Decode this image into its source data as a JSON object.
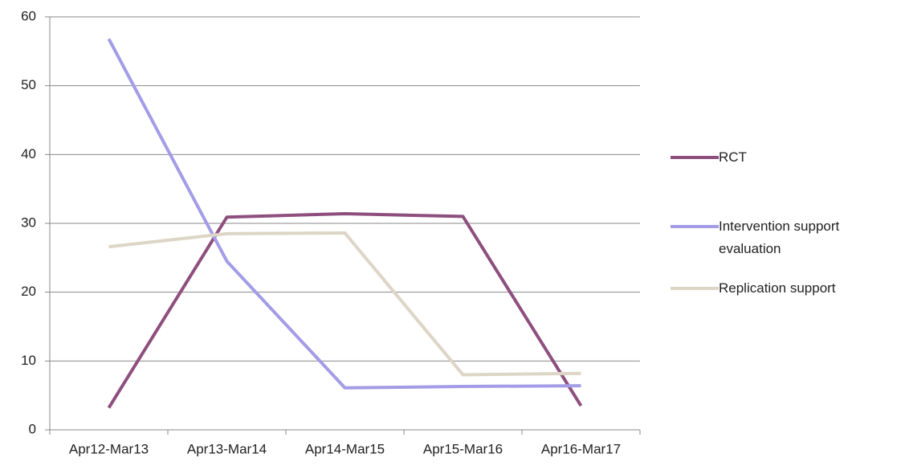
{
  "chart_data": {
    "type": "line",
    "categories": [
      "Apr12-Mar13",
      "Apr13-Mar14",
      "Apr14-Mar15",
      "Apr15-Mar16",
      "Apr16-Mar17"
    ],
    "series": [
      {
        "name": "RCT",
        "color": "#8e4f7e",
        "values": [
          3.2,
          30.9,
          31.4,
          31.0,
          3.5
        ]
      },
      {
        "name": "Intervention support evaluation",
        "color": "#a39ce6",
        "values": [
          56.8,
          24.5,
          6.1,
          6.3,
          6.4
        ]
      },
      {
        "name": "Replication support",
        "color": "#ddd5c5",
        "values": [
          26.6,
          28.5,
          28.6,
          8.0,
          8.2
        ]
      }
    ],
    "ylim": [
      0,
      60
    ],
    "yticks": [
      0,
      10,
      20,
      30,
      40,
      50,
      60
    ],
    "grid": true,
    "legend": "right"
  }
}
